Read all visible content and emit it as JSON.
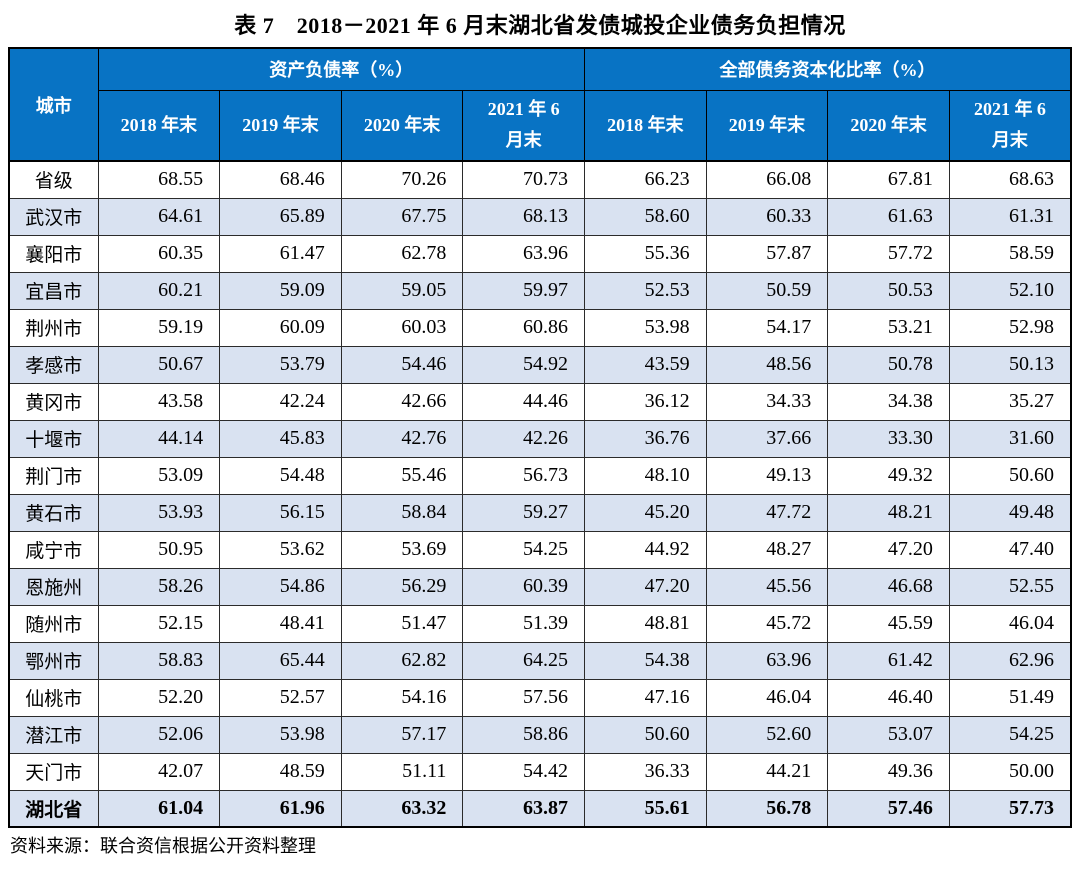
{
  "page": {
    "title": "表 7　2018－2021 年 6 月末湖北省发债城投企业债务负担情况",
    "source_note": "资料来源：联合资信根据公开资料整理"
  },
  "colors": {
    "header_blue": "#0873C4",
    "row_shaded": "#D9E2F1",
    "border_dark": "#000000"
  },
  "table": {
    "city_header": "城市",
    "groups": [
      {
        "label": "资产负债率（%）"
      },
      {
        "label": "全部债务资本化比率（%）"
      }
    ],
    "sub_labels": [
      "2018 年末",
      "2019 年末",
      "2020 年末",
      "2021 年 6 月末"
    ],
    "rows": [
      {
        "city": "省级",
        "values": [
          "68.55",
          "68.46",
          "70.26",
          "70.73",
          "66.23",
          "66.08",
          "67.81",
          "68.63"
        ],
        "is_total": false
      },
      {
        "city": "武汉市",
        "values": [
          "64.61",
          "65.89",
          "67.75",
          "68.13",
          "58.60",
          "60.33",
          "61.63",
          "61.31"
        ],
        "is_total": false
      },
      {
        "city": "襄阳市",
        "values": [
          "60.35",
          "61.47",
          "62.78",
          "63.96",
          "55.36",
          "57.87",
          "57.72",
          "58.59"
        ],
        "is_total": false
      },
      {
        "city": "宜昌市",
        "values": [
          "60.21",
          "59.09",
          "59.05",
          "59.97",
          "52.53",
          "50.59",
          "50.53",
          "52.10"
        ],
        "is_total": false
      },
      {
        "city": "荆州市",
        "values": [
          "59.19",
          "60.09",
          "60.03",
          "60.86",
          "53.98",
          "54.17",
          "53.21",
          "52.98"
        ],
        "is_total": false
      },
      {
        "city": "孝感市",
        "values": [
          "50.67",
          "53.79",
          "54.46",
          "54.92",
          "43.59",
          "48.56",
          "50.78",
          "50.13"
        ],
        "is_total": false
      },
      {
        "city": "黄冈市",
        "values": [
          "43.58",
          "42.24",
          "42.66",
          "44.46",
          "36.12",
          "34.33",
          "34.38",
          "35.27"
        ],
        "is_total": false
      },
      {
        "city": "十堰市",
        "values": [
          "44.14",
          "45.83",
          "42.76",
          "42.26",
          "36.76",
          "37.66",
          "33.30",
          "31.60"
        ],
        "is_total": false
      },
      {
        "city": "荆门市",
        "values": [
          "53.09",
          "54.48",
          "55.46",
          "56.73",
          "48.10",
          "49.13",
          "49.32",
          "50.60"
        ],
        "is_total": false
      },
      {
        "city": "黄石市",
        "values": [
          "53.93",
          "56.15",
          "58.84",
          "59.27",
          "45.20",
          "47.72",
          "48.21",
          "49.48"
        ],
        "is_total": false
      },
      {
        "city": "咸宁市",
        "values": [
          "50.95",
          "53.62",
          "53.69",
          "54.25",
          "44.92",
          "48.27",
          "47.20",
          "47.40"
        ],
        "is_total": false
      },
      {
        "city": "恩施州",
        "values": [
          "58.26",
          "54.86",
          "56.29",
          "60.39",
          "47.20",
          "45.56",
          "46.68",
          "52.55"
        ],
        "is_total": false
      },
      {
        "city": "随州市",
        "values": [
          "52.15",
          "48.41",
          "51.47",
          "51.39",
          "48.81",
          "45.72",
          "45.59",
          "46.04"
        ],
        "is_total": false
      },
      {
        "city": "鄂州市",
        "values": [
          "58.83",
          "65.44",
          "62.82",
          "64.25",
          "54.38",
          "63.96",
          "61.42",
          "62.96"
        ],
        "is_total": false
      },
      {
        "city": "仙桃市",
        "values": [
          "52.20",
          "52.57",
          "54.16",
          "57.56",
          "47.16",
          "46.04",
          "46.40",
          "51.49"
        ],
        "is_total": false
      },
      {
        "city": "潜江市",
        "values": [
          "52.06",
          "53.98",
          "57.17",
          "58.86",
          "50.60",
          "52.60",
          "53.07",
          "54.25"
        ],
        "is_total": false
      },
      {
        "city": "天门市",
        "values": [
          "42.07",
          "48.59",
          "51.11",
          "54.42",
          "36.33",
          "44.21",
          "49.36",
          "50.00"
        ],
        "is_total": false
      },
      {
        "city": "湖北省",
        "values": [
          "61.04",
          "61.96",
          "63.32",
          "63.87",
          "55.61",
          "56.78",
          "57.46",
          "57.73"
        ],
        "is_total": true
      }
    ]
  }
}
